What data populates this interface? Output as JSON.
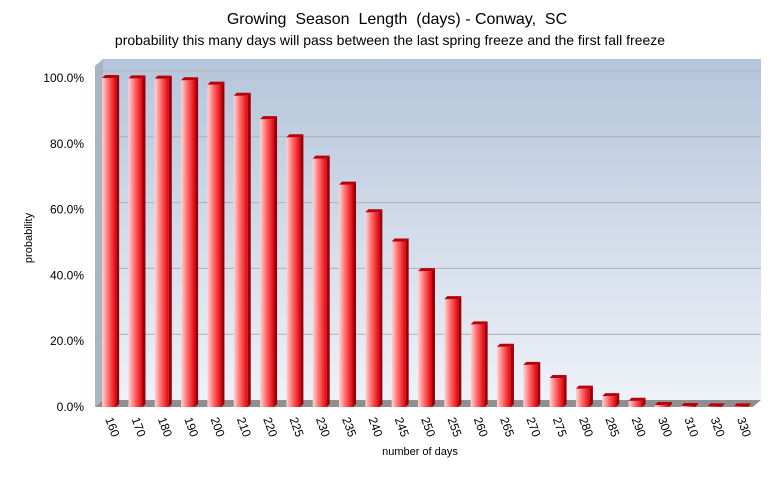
{
  "chart_data": {
    "type": "bar",
    "title": "Growing  Season  Length  (days) - Conway,  SC",
    "subtitle": "probability this many days will pass between the last spring freeze and the first fall freeze",
    "xlabel": "number of days",
    "ylabel": "probability",
    "categories": [
      "160",
      "170",
      "180",
      "190",
      "200",
      "210",
      "220",
      "225",
      "230",
      "235",
      "240",
      "245",
      "250",
      "255",
      "260",
      "265",
      "270",
      "275",
      "280",
      "285",
      "290",
      "300",
      "310",
      "320",
      "330"
    ],
    "values": [
      100.0,
      99.9,
      99.8,
      99.3,
      98.0,
      94.6,
      87.5,
      82.0,
      75.5,
      67.6,
      59.2,
      50.3,
      41.3,
      32.8,
      25.1,
      18.3,
      12.8,
      8.8,
      5.6,
      3.3,
      1.9,
      0.6,
      0.3,
      0.2,
      0.2
    ],
    "ylim": [
      0,
      100
    ],
    "ytick_labels": [
      "0.0%",
      "20.0%",
      "40.0%",
      "60.0%",
      "80.0%",
      "100.0%"
    ],
    "grid": true,
    "colors": {
      "bar_light": "#ffd0d0",
      "bar_dark": "#e8000a",
      "bar_top": "#b8000a",
      "plot_top": "#b5c5db",
      "plot_bottom": "#eef2f8",
      "grid": "#b0b0b0"
    }
  }
}
